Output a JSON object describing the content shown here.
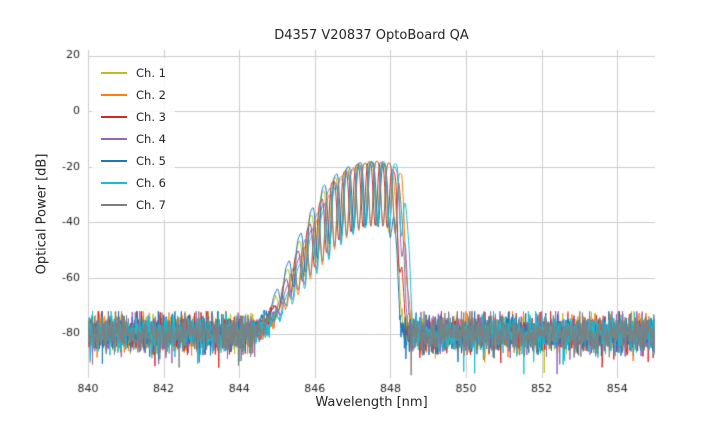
{
  "chart_data": {
    "type": "line",
    "title": "D4357 V20837 OptoBoard QA",
    "xlabel": "Wavelength [nm]",
    "ylabel": "Optical Power [dB]",
    "xlim": [
      840,
      855
    ],
    "ylim": [
      -96,
      22
    ],
    "xticks": [
      840,
      842,
      844,
      846,
      848,
      850,
      852,
      854
    ],
    "yticks": [
      20,
      0,
      -20,
      -40,
      -60,
      -80
    ],
    "grid": true,
    "grid_color": "#cccccc",
    "text_color": "#262626",
    "legend_position": "upper-left",
    "step": 0.01,
    "noise": {
      "floor_db": -80,
      "sigma_db": 3.2,
      "spike_prob": 0.02,
      "spike_db": 10,
      "clip_db": -95,
      "clip_hi_db": -72,
      "seed": 42
    },
    "fringe": {
      "period_nm": 0.32,
      "sharpness": 2,
      "max_depth_db": 23,
      "min_depth_db": 5,
      "depth_scale": 0.45,
      "depth_ref_db": -80
    },
    "envelope": [
      [
        844.0,
        -95
      ],
      [
        844.6,
        -80
      ],
      [
        845.0,
        -70
      ],
      [
        845.3,
        -60
      ],
      [
        845.7,
        -47
      ],
      [
        846.0,
        -38
      ],
      [
        846.4,
        -27
      ],
      [
        846.8,
        -22
      ],
      [
        847.2,
        -19
      ],
      [
        847.6,
        -18
      ],
      [
        848.0,
        -19
      ],
      [
        848.2,
        -23
      ],
      [
        848.35,
        -50
      ],
      [
        848.5,
        -95
      ]
    ],
    "series": [
      {
        "name": "Ch. 1",
        "color": "#bcbd22",
        "offset_nm": -0.12,
        "phase": 0.0
      },
      {
        "name": "Ch. 2",
        "color": "#ff7f0e",
        "offset_nm": 0.1,
        "phase": 1.1
      },
      {
        "name": "Ch. 3",
        "color": "#d62728",
        "offset_nm": -0.05,
        "phase": 2.2
      },
      {
        "name": "Ch. 4",
        "color": "#9467bd",
        "offset_nm": 0.06,
        "phase": 3.3
      },
      {
        "name": "Ch. 5",
        "color": "#1f77b4",
        "offset_nm": -0.18,
        "phase": 4.4
      },
      {
        "name": "Ch. 6",
        "color": "#17becf",
        "offset_nm": 0.15,
        "phase": 5.0
      },
      {
        "name": "Ch. 7",
        "color": "#7f7f7f",
        "offset_nm": 0.02,
        "phase": 5.8
      }
    ]
  }
}
